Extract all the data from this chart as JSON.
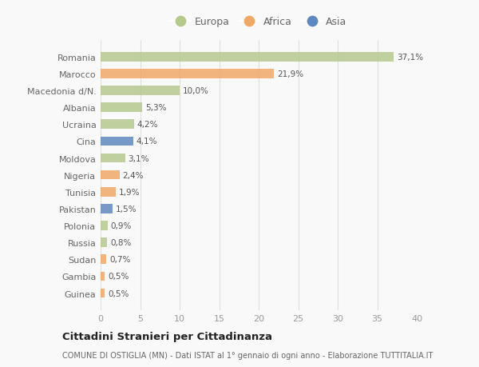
{
  "countries": [
    "Romania",
    "Marocco",
    "Macedonia d/N.",
    "Albania",
    "Ucraina",
    "Cina",
    "Moldova",
    "Nigeria",
    "Tunisia",
    "Pakistan",
    "Polonia",
    "Russia",
    "Sudan",
    "Gambia",
    "Guinea"
  ],
  "values": [
    37.1,
    21.9,
    10.0,
    5.3,
    4.2,
    4.1,
    3.1,
    2.4,
    1.9,
    1.5,
    0.9,
    0.8,
    0.7,
    0.5,
    0.5
  ],
  "labels": [
    "37,1%",
    "21,9%",
    "10,0%",
    "5,3%",
    "4,2%",
    "4,1%",
    "3,1%",
    "2,4%",
    "1,9%",
    "1,5%",
    "0,9%",
    "0,8%",
    "0,7%",
    "0,5%",
    "0,5%"
  ],
  "continents": [
    "Europa",
    "Africa",
    "Europa",
    "Europa",
    "Europa",
    "Asia",
    "Europa",
    "Africa",
    "Africa",
    "Asia",
    "Europa",
    "Europa",
    "Africa",
    "Africa",
    "Africa"
  ],
  "colors": {
    "Europa": "#b5c98e",
    "Africa": "#f0a868",
    "Asia": "#6088c0"
  },
  "xlim": [
    0,
    40
  ],
  "xticks": [
    0,
    5,
    10,
    15,
    20,
    25,
    30,
    35,
    40
  ],
  "title": "Cittadini Stranieri per Cittadinanza",
  "subtitle": "COMUNE DI OSTIGLIA (MN) - Dati ISTAT al 1° gennaio di ogni anno - Elaborazione TUTTITALIA.IT",
  "background_color": "#f9f9f9",
  "grid_color": "#e0e0e0",
  "bar_height": 0.55
}
